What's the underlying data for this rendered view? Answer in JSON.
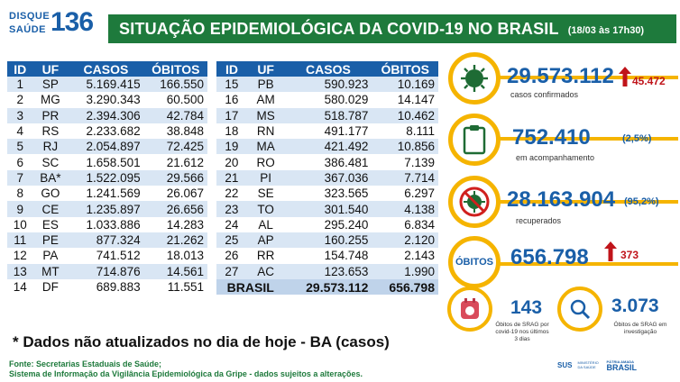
{
  "header": {
    "logo_top": "DISQUE",
    "logo_bottom": "SAÚDE",
    "logo_number": "136",
    "title": "SITUAÇÃO EPIDEMIOLÓGICA DA COVID-19 NO BRASIL",
    "date": "(18/03 às 17h30)"
  },
  "table": {
    "headers": [
      "ID",
      "UF",
      "CASOS",
      "ÓBITOS"
    ],
    "left_rows": [
      [
        "1",
        "SP",
        "5.169.415",
        "166.550"
      ],
      [
        "2",
        "MG",
        "3.290.343",
        "60.500"
      ],
      [
        "3",
        "PR",
        "2.394.306",
        "42.784"
      ],
      [
        "4",
        "RS",
        "2.233.682",
        "38.848"
      ],
      [
        "5",
        "RJ",
        "2.054.897",
        "72.425"
      ],
      [
        "6",
        "SC",
        "1.658.501",
        "21.612"
      ],
      [
        "7",
        "BA*",
        "1.522.095",
        "29.566"
      ],
      [
        "8",
        "GO",
        "1.241.569",
        "26.067"
      ],
      [
        "9",
        "CE",
        "1.235.897",
        "26.656"
      ],
      [
        "10",
        "ES",
        "1.033.886",
        "14.283"
      ],
      [
        "11",
        "PE",
        "877.324",
        "21.262"
      ],
      [
        "12",
        "PA",
        "741.512",
        "18.013"
      ],
      [
        "13",
        "MT",
        "714.876",
        "14.561"
      ],
      [
        "14",
        "DF",
        "689.883",
        "11.551"
      ]
    ],
    "right_rows": [
      [
        "15",
        "PB",
        "590.923",
        "10.169"
      ],
      [
        "16",
        "AM",
        "580.029",
        "14.147"
      ],
      [
        "17",
        "MS",
        "518.787",
        "10.462"
      ],
      [
        "18",
        "RN",
        "491.177",
        "8.111"
      ],
      [
        "19",
        "MA",
        "421.492",
        "10.856"
      ],
      [
        "20",
        "RO",
        "386.481",
        "7.139"
      ],
      [
        "21",
        "PI",
        "367.036",
        "7.714"
      ],
      [
        "22",
        "SE",
        "323.565",
        "6.297"
      ],
      [
        "23",
        "TO",
        "301.540",
        "4.138"
      ],
      [
        "24",
        "AL",
        "295.240",
        "6.834"
      ],
      [
        "25",
        "AP",
        "160.255",
        "2.120"
      ],
      [
        "26",
        "RR",
        "154.748",
        "2.143"
      ],
      [
        "27",
        "AC",
        "123.653",
        "1.990"
      ]
    ],
    "total": {
      "label": "BRASIL",
      "cases": "29.573.112",
      "deaths": "656.798"
    }
  },
  "note": "* Dados não atualizados no dia de hoje - BA (casos)",
  "source_line1": "Fonte: Secretarias Estaduais de Saúde;",
  "source_line2": "Sistema de Informação da Vigilância Epidemiológica da Gripe - dados sujeitos a alterações.",
  "stats": {
    "confirmed": {
      "value": "29.573.112",
      "label": "casos confirmados",
      "new": "45.472"
    },
    "monitoring": {
      "value": "752.410",
      "label": "em acompanhamento",
      "pct": "(2,5%)"
    },
    "recovered": {
      "value": "28.163.904",
      "label": "recuperados",
      "pct": "(95,2%)"
    },
    "deaths": {
      "circle_label": "ÓBITOS",
      "value": "656.798",
      "new": "373"
    },
    "srag": {
      "value": "143",
      "label_1": "Óbitos de SRAG por",
      "label_2": "covid-19 nos últimos",
      "label_3": "3 dias"
    },
    "investigation": {
      "value": "3.073",
      "label_1": "Óbitos de SRAG em",
      "label_2": "investigação"
    }
  },
  "footer": {
    "sus": "SUS",
    "ministry": "MINISTÉRIO DA SAÚDE",
    "gov_1": "PÁTRIA AMADA",
    "gov_2": "BRASIL"
  },
  "colors": {
    "green": "#1e7a3c",
    "blue": "#1a5fa8",
    "yellow": "#f5b400",
    "red": "#c0141a"
  }
}
